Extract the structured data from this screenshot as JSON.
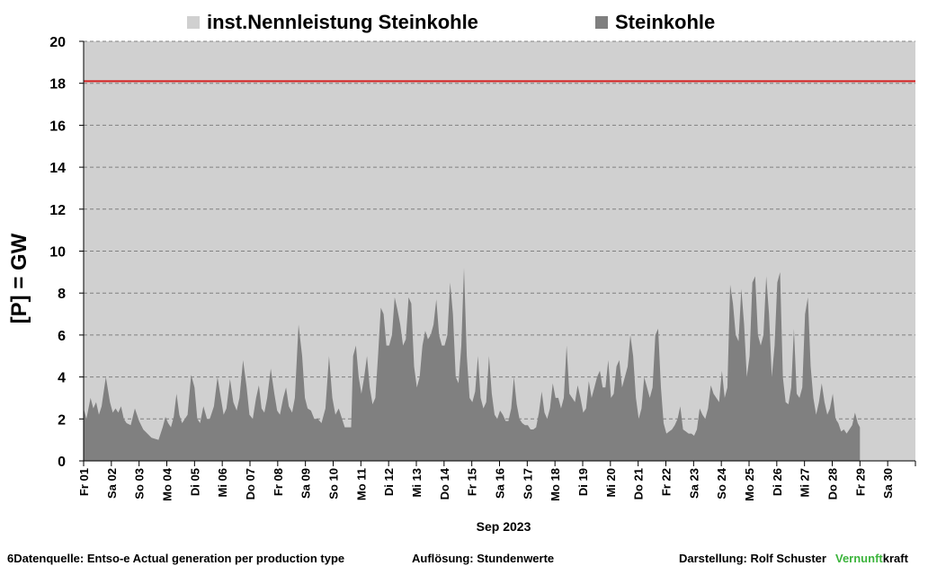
{
  "legend": {
    "capacity_label": "inst.Nennleistung Steinkohle",
    "generation_label": "Steinkohle"
  },
  "colors": {
    "plot_background": "#d0d0d0",
    "area_fill": "#808080",
    "capacity_line": "#d42020",
    "legend_capacity": "#d0d0d0",
    "legend_generation": "#7f7f7f",
    "brand_green": "#3cb43c"
  },
  "axis": {
    "ylabel": "[P]  = GW",
    "xlabel": "Sep 2023"
  },
  "footer": {
    "source": "6Datenquelle: Entso-e  Actual generation per production type",
    "resolution": "Auflösung: Stundenwerte",
    "author": "Darstellung:  Rolf Schuster",
    "brand_green": "Vernunft",
    "brand_black": "kraft"
  },
  "chart_data": {
    "type": "area",
    "title": "",
    "xlabel": "Sep 2023",
    "ylabel": "[P]  = GW",
    "ylim": [
      0,
      20
    ],
    "yticks": [
      0,
      2,
      4,
      6,
      8,
      10,
      12,
      14,
      16,
      18,
      20
    ],
    "grid": true,
    "legend_position": "top",
    "x_unit": "day of September 2023 (fractional)",
    "x_range": [
      1,
      31
    ],
    "x_tick_labels": [
      "Fr 01",
      "Sa 02",
      "So 03",
      "Mo 04",
      "Di 05",
      "Mi 06",
      "Do 07",
      "Fr 08",
      "Sa 09",
      "So 10",
      "Mo 11",
      "Di 12",
      "Mi 13",
      "Do 14",
      "Fr 15",
      "Sa 16",
      "So 17",
      "Mo 18",
      "Di 19",
      "Mi 20",
      "Do 21",
      "Fr 22",
      "Sa 23",
      "So 24",
      "Mo 25",
      "Di 26",
      "Mi 27",
      "Do 28",
      "Fr 29",
      "Sa 30"
    ],
    "series": [
      {
        "name": "inst.Nennleistung Steinkohle",
        "kind": "constant",
        "value": 18.1
      },
      {
        "name": "Steinkohle",
        "kind": "area",
        "points": [
          [
            1.0,
            2.5
          ],
          [
            1.1,
            2.0
          ],
          [
            1.25,
            3.0
          ],
          [
            1.35,
            2.5
          ],
          [
            1.45,
            2.8
          ],
          [
            1.55,
            2.2
          ],
          [
            1.65,
            2.6
          ],
          [
            1.8,
            4.0
          ],
          [
            1.95,
            2.8
          ],
          [
            2.05,
            2.3
          ],
          [
            2.15,
            2.5
          ],
          [
            2.25,
            2.3
          ],
          [
            2.35,
            2.6
          ],
          [
            2.45,
            2.0
          ],
          [
            2.55,
            1.8
          ],
          [
            2.7,
            1.7
          ],
          [
            2.85,
            2.5
          ],
          [
            3.0,
            1.9
          ],
          [
            3.15,
            1.5
          ],
          [
            3.3,
            1.3
          ],
          [
            3.45,
            1.1
          ],
          [
            3.7,
            1.0
          ],
          [
            3.85,
            1.6
          ],
          [
            3.95,
            2.1
          ],
          [
            4.05,
            1.8
          ],
          [
            4.15,
            1.6
          ],
          [
            4.25,
            2.1
          ],
          [
            4.35,
            3.2
          ],
          [
            4.45,
            2.2
          ],
          [
            4.55,
            1.8
          ],
          [
            4.75,
            2.2
          ],
          [
            4.88,
            4.1
          ],
          [
            5.0,
            3.5
          ],
          [
            5.1,
            2.0
          ],
          [
            5.2,
            1.8
          ],
          [
            5.32,
            2.6
          ],
          [
            5.45,
            2.0
          ],
          [
            5.55,
            2.0
          ],
          [
            5.7,
            2.6
          ],
          [
            5.83,
            4.0
          ],
          [
            5.95,
            3.0
          ],
          [
            6.05,
            2.2
          ],
          [
            6.15,
            2.5
          ],
          [
            6.28,
            3.9
          ],
          [
            6.4,
            2.8
          ],
          [
            6.52,
            2.4
          ],
          [
            6.62,
            3.0
          ],
          [
            6.75,
            4.8
          ],
          [
            6.88,
            3.5
          ],
          [
            6.98,
            2.2
          ],
          [
            7.1,
            2.0
          ],
          [
            7.22,
            3.0
          ],
          [
            7.32,
            3.6
          ],
          [
            7.42,
            2.5
          ],
          [
            7.52,
            2.3
          ],
          [
            7.62,
            3.0
          ],
          [
            7.75,
            4.4
          ],
          [
            7.88,
            3.2
          ],
          [
            7.98,
            2.4
          ],
          [
            8.08,
            2.2
          ],
          [
            8.2,
            3.0
          ],
          [
            8.3,
            3.5
          ],
          [
            8.4,
            2.6
          ],
          [
            8.52,
            2.3
          ],
          [
            8.62,
            3.0
          ],
          [
            8.75,
            6.5
          ],
          [
            8.88,
            5.0
          ],
          [
            8.98,
            3.0
          ],
          [
            9.08,
            2.5
          ],
          [
            9.2,
            2.4
          ],
          [
            9.32,
            2.0
          ],
          [
            9.45,
            2.0
          ],
          [
            9.58,
            1.8
          ],
          [
            9.72,
            2.5
          ],
          [
            9.85,
            5.0
          ],
          [
            9.97,
            3.0
          ],
          [
            10.08,
            2.2
          ],
          [
            10.2,
            2.5
          ],
          [
            10.32,
            2.0
          ],
          [
            10.42,
            1.6
          ],
          [
            10.55,
            1.6
          ],
          [
            10.65,
            1.6
          ],
          [
            10.72,
            5.0
          ],
          [
            10.82,
            5.5
          ],
          [
            10.92,
            4.0
          ],
          [
            11.02,
            3.2
          ],
          [
            11.12,
            4.0
          ],
          [
            11.22,
            5.0
          ],
          [
            11.32,
            3.5
          ],
          [
            11.42,
            2.7
          ],
          [
            11.52,
            3.0
          ],
          [
            11.62,
            5.0
          ],
          [
            11.72,
            7.3
          ],
          [
            11.82,
            7.0
          ],
          [
            11.92,
            5.5
          ],
          [
            12.02,
            5.5
          ],
          [
            12.12,
            6.0
          ],
          [
            12.22,
            7.8
          ],
          [
            12.32,
            7.2
          ],
          [
            12.42,
            6.5
          ],
          [
            12.52,
            5.5
          ],
          [
            12.62,
            5.8
          ],
          [
            12.72,
            7.8
          ],
          [
            12.82,
            7.5
          ],
          [
            12.92,
            4.5
          ],
          [
            13.02,
            3.5
          ],
          [
            13.12,
            4.0
          ],
          [
            13.22,
            5.5
          ],
          [
            13.32,
            6.2
          ],
          [
            13.42,
            5.8
          ],
          [
            13.52,
            6.0
          ],
          [
            13.62,
            6.5
          ],
          [
            13.72,
            7.7
          ],
          [
            13.82,
            6.0
          ],
          [
            13.92,
            5.5
          ],
          [
            14.02,
            5.5
          ],
          [
            14.12,
            6.0
          ],
          [
            14.22,
            8.5
          ],
          [
            14.32,
            7.0
          ],
          [
            14.42,
            4.0
          ],
          [
            14.52,
            3.7
          ],
          [
            14.62,
            5.5
          ],
          [
            14.72,
            9.2
          ],
          [
            14.82,
            5.0
          ],
          [
            14.92,
            3.0
          ],
          [
            15.02,
            2.8
          ],
          [
            15.12,
            3.3
          ],
          [
            15.22,
            5.0
          ],
          [
            15.32,
            3.0
          ],
          [
            15.42,
            2.5
          ],
          [
            15.52,
            2.8
          ],
          [
            15.62,
            5.0
          ],
          [
            15.72,
            3.2
          ],
          [
            15.82,
            2.2
          ],
          [
            15.92,
            2.0
          ],
          [
            16.02,
            2.4
          ],
          [
            16.12,
            2.2
          ],
          [
            16.22,
            1.9
          ],
          [
            16.32,
            1.9
          ],
          [
            16.42,
            2.5
          ],
          [
            16.52,
            4.0
          ],
          [
            16.62,
            2.7
          ],
          [
            16.72,
            2.0
          ],
          [
            16.82,
            1.8
          ],
          [
            16.92,
            1.7
          ],
          [
            17.02,
            1.7
          ],
          [
            17.12,
            1.5
          ],
          [
            17.22,
            1.5
          ],
          [
            17.32,
            1.6
          ],
          [
            17.42,
            2.3
          ],
          [
            17.52,
            3.3
          ],
          [
            17.62,
            2.3
          ],
          [
            17.72,
            2.0
          ],
          [
            17.82,
            2.5
          ],
          [
            17.92,
            3.7
          ],
          [
            18.02,
            3.0
          ],
          [
            18.12,
            3.0
          ],
          [
            18.22,
            2.5
          ],
          [
            18.32,
            3.0
          ],
          [
            18.42,
            5.5
          ],
          [
            18.52,
            3.2
          ],
          [
            18.62,
            3.0
          ],
          [
            18.72,
            2.8
          ],
          [
            18.82,
            3.6
          ],
          [
            18.92,
            3.0
          ],
          [
            19.02,
            2.3
          ],
          [
            19.12,
            2.5
          ],
          [
            19.22,
            3.8
          ],
          [
            19.32,
            3.0
          ],
          [
            19.42,
            3.5
          ],
          [
            19.52,
            4.0
          ],
          [
            19.62,
            4.3
          ],
          [
            19.72,
            3.5
          ],
          [
            19.82,
            3.5
          ],
          [
            19.92,
            4.8
          ],
          [
            20.02,
            3.0
          ],
          [
            20.12,
            3.2
          ],
          [
            20.22,
            4.5
          ],
          [
            20.32,
            4.8
          ],
          [
            20.42,
            3.5
          ],
          [
            20.52,
            4.0
          ],
          [
            20.62,
            4.5
          ],
          [
            20.72,
            6.0
          ],
          [
            20.82,
            5.0
          ],
          [
            20.92,
            3.0
          ],
          [
            21.02,
            2.0
          ],
          [
            21.12,
            2.5
          ],
          [
            21.22,
            4.0
          ],
          [
            21.32,
            3.5
          ],
          [
            21.42,
            3.0
          ],
          [
            21.52,
            3.5
          ],
          [
            21.62,
            6.0
          ],
          [
            21.72,
            6.3
          ],
          [
            21.82,
            3.5
          ],
          [
            21.92,
            1.8
          ],
          [
            22.02,
            1.3
          ],
          [
            22.12,
            1.4
          ],
          [
            22.22,
            1.5
          ],
          [
            22.32,
            1.7
          ],
          [
            22.42,
            2.0
          ],
          [
            22.52,
            2.6
          ],
          [
            22.62,
            1.5
          ],
          [
            22.72,
            1.4
          ],
          [
            22.82,
            1.3
          ],
          [
            22.92,
            1.3
          ],
          [
            23.02,
            1.2
          ],
          [
            23.12,
            1.5
          ],
          [
            23.22,
            2.5
          ],
          [
            23.32,
            2.2
          ],
          [
            23.42,
            2.0
          ],
          [
            23.52,
            2.5
          ],
          [
            23.62,
            3.6
          ],
          [
            23.72,
            3.2
          ],
          [
            23.82,
            3.0
          ],
          [
            23.92,
            2.8
          ],
          [
            24.02,
            4.3
          ],
          [
            24.12,
            3.0
          ],
          [
            24.22,
            3.5
          ],
          [
            24.32,
            8.4
          ],
          [
            24.42,
            7.5
          ],
          [
            24.52,
            6.0
          ],
          [
            24.62,
            5.7
          ],
          [
            24.72,
            8.2
          ],
          [
            24.82,
            6.5
          ],
          [
            24.92,
            4.0
          ],
          [
            25.02,
            5.0
          ],
          [
            25.12,
            8.5
          ],
          [
            25.22,
            8.8
          ],
          [
            25.32,
            6.0
          ],
          [
            25.42,
            5.5
          ],
          [
            25.52,
            6.0
          ],
          [
            25.62,
            8.8
          ],
          [
            25.72,
            7.0
          ],
          [
            25.82,
            4.0
          ],
          [
            25.92,
            5.5
          ],
          [
            26.02,
            8.5
          ],
          [
            26.12,
            9.0
          ],
          [
            26.22,
            4.0
          ],
          [
            26.32,
            2.8
          ],
          [
            26.42,
            2.7
          ],
          [
            26.52,
            3.5
          ],
          [
            26.62,
            6.3
          ],
          [
            26.72,
            3.2
          ],
          [
            26.82,
            3.0
          ],
          [
            26.92,
            3.5
          ],
          [
            27.02,
            7.0
          ],
          [
            27.12,
            7.8
          ],
          [
            27.22,
            4.5
          ],
          [
            27.32,
            3.0
          ],
          [
            27.42,
            2.2
          ],
          [
            27.52,
            2.8
          ],
          [
            27.62,
            3.7
          ],
          [
            27.72,
            2.8
          ],
          [
            27.82,
            2.2
          ],
          [
            27.92,
            2.5
          ],
          [
            28.02,
            3.2
          ],
          [
            28.12,
            2.0
          ],
          [
            28.22,
            1.8
          ],
          [
            28.32,
            1.4
          ],
          [
            28.42,
            1.5
          ],
          [
            28.52,
            1.3
          ],
          [
            28.62,
            1.5
          ],
          [
            28.72,
            1.7
          ],
          [
            28.82,
            2.3
          ],
          [
            28.92,
            1.8
          ],
          [
            29.0,
            1.6
          ]
        ]
      }
    ]
  }
}
